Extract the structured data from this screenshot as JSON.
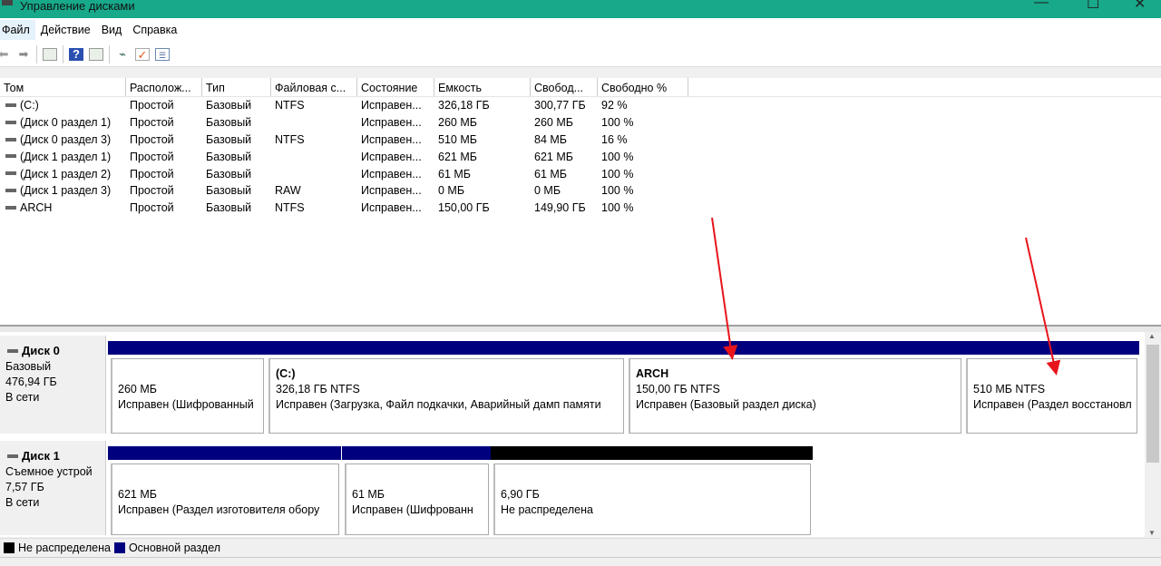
{
  "window": {
    "title": "Управление дисками",
    "controls": [
      "—",
      "☐",
      "✕"
    ]
  },
  "menu": [
    "Файл",
    "Действие",
    "Вид",
    "Справка"
  ],
  "toolbar": [
    "back-icon",
    "forward-icon",
    "console-tree-icon",
    "help-icon",
    "action-pane-icon",
    "connect-icon",
    "properties-icon",
    "list-icon"
  ],
  "table": {
    "columns": [
      "Том",
      "Располож...",
      "Тип",
      "Файловая с...",
      "Состояние",
      "Емкость",
      "Свобод...",
      "Свободно %"
    ],
    "rows": [
      [
        "(C:)",
        "Простой",
        "Базовый",
        "NTFS",
        "Исправен...",
        "326,18 ГБ",
        "300,77 ГБ",
        "92 %"
      ],
      [
        "(Диск 0 раздел 1)",
        "Простой",
        "Базовый",
        "",
        "Исправен...",
        "260 МБ",
        "260 МБ",
        "100 %"
      ],
      [
        "(Диск 0 раздел 3)",
        "Простой",
        "Базовый",
        "NTFS",
        "Исправен...",
        "510 МБ",
        "84 МБ",
        "16 %"
      ],
      [
        "(Диск 1 раздел 1)",
        "Простой",
        "Базовый",
        "",
        "Исправен...",
        "621 МБ",
        "621 МБ",
        "100 %"
      ],
      [
        "(Диск 1 раздел 2)",
        "Простой",
        "Базовый",
        "",
        "Исправен...",
        "61 МБ",
        "61 МБ",
        "100 %"
      ],
      [
        "(Диск 1 раздел 3)",
        "Простой",
        "Базовый",
        "RAW",
        "Исправен...",
        "0 МБ",
        "0 МБ",
        "100 %"
      ],
      [
        "ARCH",
        "Простой",
        "Базовый",
        "NTFS",
        "Исправен...",
        "150,00 ГБ",
        "149,90 ГБ",
        "100 %"
      ]
    ]
  },
  "disks": [
    {
      "name": "Диск 0",
      "type": "Базовый",
      "size": "476,94 ГБ",
      "status": "В сети",
      "partitions": [
        {
          "label": "",
          "size": "260 МБ",
          "state": "Исправен (Шифрованный",
          "kind": "primary"
        },
        {
          "label": "(C:)",
          "size": "326,18 ГБ NTFS",
          "state": "Исправен (Загрузка, Файл подкачки, Аварийный дамп памяти",
          "kind": "primary"
        },
        {
          "label": "ARCH",
          "size": "150,00 ГБ NTFS",
          "state": "Исправен (Базовый раздел диска)",
          "kind": "primary"
        },
        {
          "label": "",
          "size": "510 МБ NTFS",
          "state": "Исправен (Раздел восстановл",
          "kind": "primary"
        }
      ]
    },
    {
      "name": "Диск 1",
      "type": "Съемное устрой",
      "size": "7,57 ГБ",
      "status": "В сети",
      "partitions": [
        {
          "label": "",
          "size": "621 МБ",
          "state": "Исправен (Раздел изготовителя обору",
          "kind": "primary"
        },
        {
          "label": "",
          "size": "61 МБ",
          "state": "Исправен (Шифрованн",
          "kind": "primary"
        },
        {
          "label": "",
          "size": "6,90 ГБ",
          "state": "Не распределена",
          "kind": "unallocated"
        }
      ]
    }
  ],
  "legend": [
    {
      "label": "Не распределена",
      "color": "#000000"
    },
    {
      "label": "Основной раздел",
      "color": "#00007f"
    }
  ],
  "colors": {
    "titlebar": "#17a98a",
    "primary": "#00007f",
    "unallocated": "#000000",
    "annotation_arrow": "#e8141c"
  }
}
